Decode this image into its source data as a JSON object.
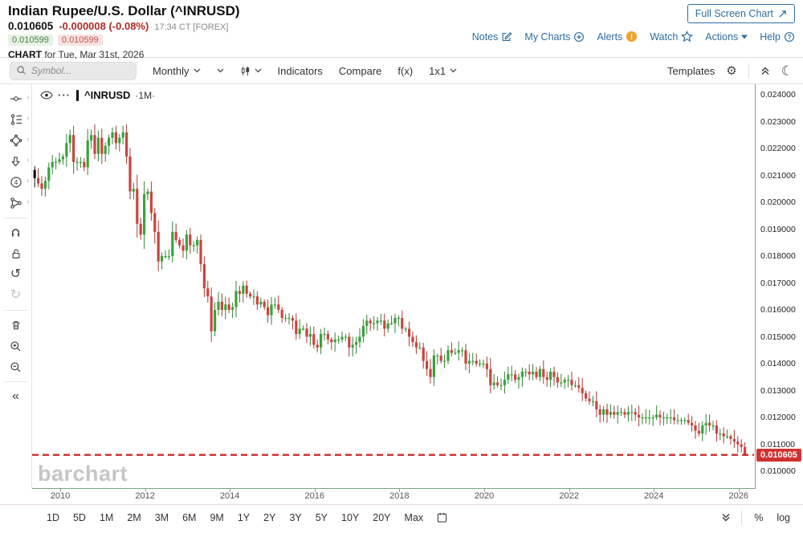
{
  "header": {
    "title": "Indian Rupee/U.S. Dollar (^INRUSD)",
    "last_price": "0.010605",
    "change": "-0.000008 (-0.08%)",
    "time": "17:34 CT [FOREX]",
    "bid": "0.010599",
    "ask": "0.010599",
    "chart_label": "CHART",
    "chart_date": " for Tue, Mar 31st, 2026",
    "full_screen_button": "Full Screen Chart",
    "links": [
      {
        "label": "Notes",
        "icon": "notes-icon"
      },
      {
        "label": "My Charts",
        "icon": "plus-circle-icon"
      },
      {
        "label": "Alerts",
        "icon": "alert-icon"
      },
      {
        "label": "Watch",
        "icon": "star-icon"
      },
      {
        "label": "Actions",
        "icon": "caret-down-icon"
      },
      {
        "label": "Help",
        "icon": "question-circle-icon"
      }
    ]
  },
  "toolbar": {
    "symbol_placeholder": "Symbol...",
    "period": "Monthly",
    "indicators": "Indicators",
    "compare": "Compare",
    "fx": "f(x)",
    "grid": "1x1",
    "templates": "Templates"
  },
  "legend": {
    "symbol": "^INRUSD",
    "interval": "·1M·"
  },
  "sidebar": {
    "tools": [
      {
        "name": "trendline-tool-icon",
        "submenu": true
      },
      {
        "name": "fibonacci-tool-icon",
        "submenu": true
      },
      {
        "name": "shapes-tool-icon",
        "submenu": true
      },
      {
        "name": "arrow-tool-icon",
        "submenu": true
      },
      {
        "name": "numbered-annotation-tool-icon",
        "submenu": true
      },
      {
        "name": "measure-tool-icon",
        "submenu": true
      },
      {
        "name": "magnet-icon"
      },
      {
        "name": "unlock-icon"
      },
      {
        "name": "undo-icon"
      },
      {
        "name": "redo-icon",
        "disabled": true
      },
      {
        "name": "delete-icon"
      },
      {
        "name": "zoom-in-icon"
      },
      {
        "name": "zoom-out-icon"
      },
      {
        "name": "collapse-sidebar-icon"
      }
    ]
  },
  "icons": {
    "gear-icon": "⚙",
    "dark-mode-icon": "☾",
    "undo-icon": "↺",
    "redo-icon": "↻",
    "collapse-sidebar-icon": "«",
    "more-menu-icon": "···"
  },
  "bottom_toolbar": {
    "ranges": [
      "1D",
      "5D",
      "1M",
      "2M",
      "3M",
      "6M",
      "9M",
      "1Y",
      "2Y",
      "3Y",
      "5Y",
      "10Y",
      "20Y",
      "Max"
    ],
    "percent": "%",
    "log": "log"
  },
  "watermark": "barchart",
  "colors": {
    "up": "#3aa33a",
    "down": "#c94540",
    "up_wick": "#2f8632",
    "down_wick": "#a83a36",
    "first_candle": "#111111",
    "last_price_line": "#cc2b2b",
    "axis": "#79a479",
    "link": "#2d6da3",
    "alert_orange": "#f0a32e",
    "badge_bg": "#cf3131"
  },
  "chart_data": {
    "type": "candlestick",
    "title": "Indian Rupee/U.S. Dollar (^INRUSD)",
    "symbol": "^INRUSD",
    "interval": "monthly",
    "start": "2009-06",
    "end": "2026-03",
    "ylim": [
      0.0097,
      0.0243
    ],
    "grid": false,
    "y_ticks": [
      "0.024000",
      "0.023000",
      "0.022000",
      "0.021000",
      "0.020000",
      "0.019000",
      "0.018000",
      "0.017000",
      "0.016000",
      "0.015000",
      "0.014000",
      "0.013000",
      "0.012000",
      "0.011000",
      "0.010000"
    ],
    "x_ticks": [
      2010,
      2012,
      2014,
      2016,
      2018,
      2020,
      2022,
      2024,
      2026
    ],
    "first_open": 0.0212,
    "closes": [
      0.0209,
      0.0207,
      0.0205,
      0.0208,
      0.0213,
      0.0215,
      0.0215,
      0.0216,
      0.0217,
      0.0222,
      0.0225,
      0.0215,
      0.0215,
      0.0215,
      0.0213,
      0.0223,
      0.0225,
      0.0218,
      0.0224,
      0.0218,
      0.0221,
      0.0224,
      0.0226,
      0.0222,
      0.0224,
      0.0226,
      0.0217,
      0.0204,
      0.0205,
      0.0192,
      0.0188,
      0.0203,
      0.0204,
      0.0196,
      0.0189,
      0.0178,
      0.018,
      0.018,
      0.018,
      0.0189,
      0.0186,
      0.0184,
      0.0182,
      0.0188,
      0.0184,
      0.0184,
      0.0186,
      0.0177,
      0.0168,
      0.0165,
      0.0152,
      0.016,
      0.0163,
      0.016,
      0.0162,
      0.016,
      0.0161,
      0.0167,
      0.0166,
      0.0169,
      0.0166,
      0.0165,
      0.0165,
      0.0162,
      0.0163,
      0.0161,
      0.0158,
      0.0162,
      0.0162,
      0.016,
      0.0157,
      0.0157,
      0.0157,
      0.0156,
      0.0151,
      0.0153,
      0.0153,
      0.015,
      0.0151,
      0.0147,
      0.0146,
      0.0151,
      0.0151,
      0.0149,
      0.0148,
      0.0149,
      0.0149,
      0.015,
      0.015,
      0.0146,
      0.0147,
      0.0148,
      0.015,
      0.0154,
      0.0156,
      0.0155,
      0.0155,
      0.0156,
      0.0156,
      0.0153,
      0.0155,
      0.0155,
      0.0157,
      0.0157,
      0.0153,
      0.0153,
      0.015,
      0.0148,
      0.0146,
      0.0146,
      0.0141,
      0.0138,
      0.0135,
      0.0143,
      0.0143,
      0.0141,
      0.0141,
      0.0145,
      0.0144,
      0.0144,
      0.0145,
      0.0145,
      0.014,
      0.0141,
      0.0141,
      0.014,
      0.014,
      0.014,
      0.0138,
      0.0132,
      0.0133,
      0.0132,
      0.0132,
      0.0134,
      0.0136,
      0.0136,
      0.0134,
      0.0135,
      0.0137,
      0.0137,
      0.0136,
      0.0137,
      0.0135,
      0.0138,
      0.0135,
      0.0134,
      0.0137,
      0.0135,
      0.0133,
      0.0133,
      0.0134,
      0.0134,
      0.0132,
      0.0132,
      0.0131,
      0.0129,
      0.0127,
      0.0126,
      0.0126,
      0.0123,
      0.0121,
      0.0123,
      0.0121,
      0.0122,
      0.0121,
      0.0122,
      0.0122,
      0.0121,
      0.0122,
      0.0122,
      0.0121,
      0.012,
      0.012,
      0.012,
      0.012,
      0.012,
      0.0121,
      0.012,
      0.012,
      0.012,
      0.012,
      0.0119,
      0.0119,
      0.0119,
      0.0119,
      0.0118,
      0.0117,
      0.0115,
      0.0114,
      0.0117,
      0.0118,
      0.0117,
      0.0117,
      0.0114,
      0.0114,
      0.0113,
      0.0113,
      0.0112,
      0.0111,
      0.011,
      0.0109,
      0.010605
    ],
    "last_price": 0.010605,
    "last_price_label": "0.010605",
    "last_price_line": 0.010605
  }
}
